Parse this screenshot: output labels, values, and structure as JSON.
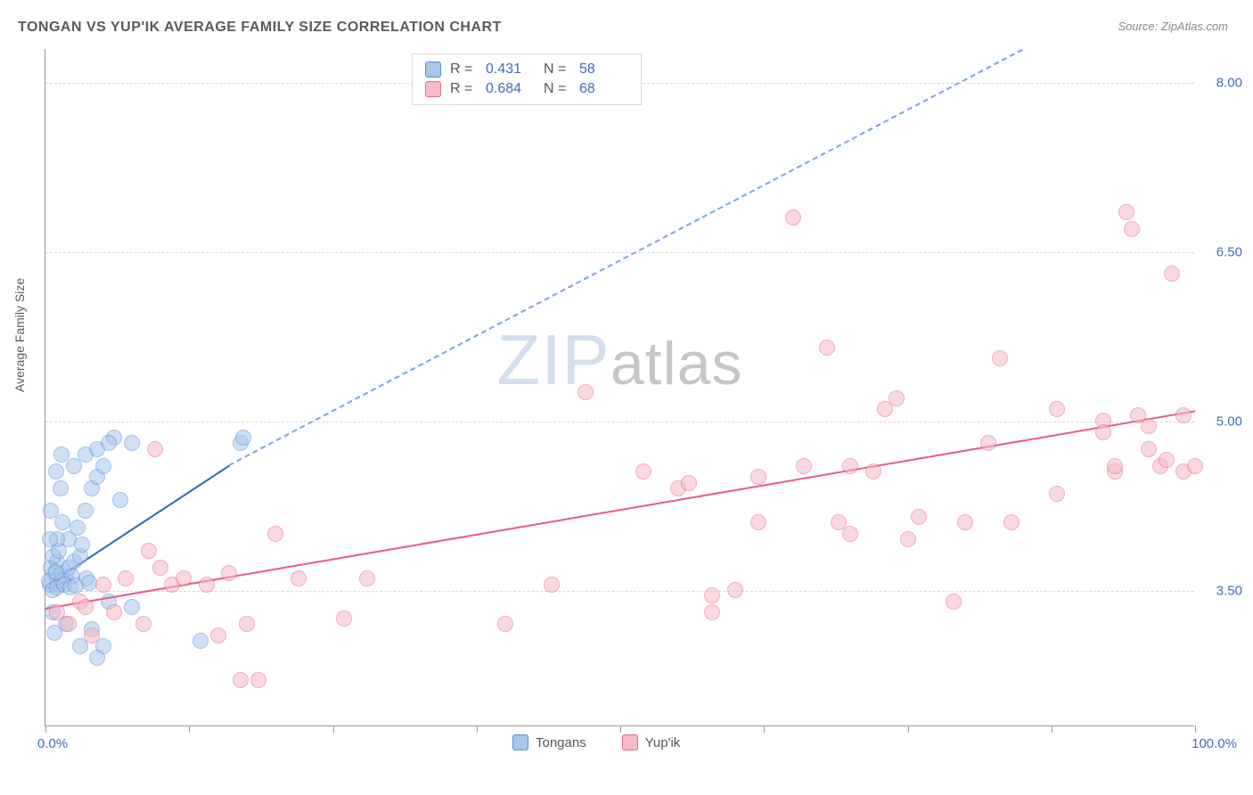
{
  "title": "TONGAN VS YUP'IK AVERAGE FAMILY SIZE CORRELATION CHART",
  "source": "Source: ZipAtlas.com",
  "ylabel": "Average Family Size",
  "watermark_zip": "ZIP",
  "watermark_rest": "atlas",
  "chart": {
    "type": "scatter",
    "xlim": [
      0,
      100
    ],
    "ylim": [
      2.3,
      8.3
    ],
    "x_axis_label_min": "0.0%",
    "x_axis_label_max": "100.0%",
    "y_ticks": [
      3.5,
      5.0,
      6.5,
      8.0
    ],
    "y_tick_labels": [
      "3.50",
      "5.00",
      "6.50",
      "8.00"
    ],
    "x_ticks": [
      0,
      12.5,
      25,
      37.5,
      50,
      62.5,
      75,
      87.5,
      100
    ],
    "grid_color": "#d8d8d8",
    "axis_color": "#999999",
    "background_color": "#ffffff",
    "tick_label_color": "#3d6db5",
    "marker_size": 18,
    "series": [
      {
        "name": "Tongans",
        "label": "Tongans",
        "fill_color": "#a9c6ec",
        "fill_opacity": 0.55,
        "stroke_color": "#5b8fd6",
        "stroke_width": 1.3,
        "R": "0.431",
        "N": "58",
        "trend": {
          "x1": 0,
          "y1": 3.55,
          "x2": 16,
          "y2": 4.62,
          "extrap_x2": 85,
          "extrap_y2": 8.3,
          "solid_color": "#2a64c1",
          "dash_color": "#7aa5e0",
          "width": 2
        },
        "points": [
          [
            0.4,
            3.55
          ],
          [
            0.6,
            3.5
          ],
          [
            0.8,
            3.65
          ],
          [
            1.0,
            3.6
          ],
          [
            0.5,
            3.7
          ],
          [
            1.2,
            3.55
          ],
          [
            1.4,
            3.65
          ],
          [
            1.6,
            3.6
          ],
          [
            1.0,
            3.75
          ],
          [
            0.7,
            3.8
          ],
          [
            1.8,
            3.62
          ],
          [
            0.3,
            3.58
          ],
          [
            1.0,
            3.52
          ],
          [
            1.5,
            3.58
          ],
          [
            2.0,
            3.7
          ],
          [
            2.3,
            3.62
          ],
          [
            1.2,
            3.85
          ],
          [
            0.9,
            3.66
          ],
          [
            2.5,
            3.75
          ],
          [
            3.0,
            3.8
          ],
          [
            2.0,
            3.95
          ],
          [
            1.5,
            4.1
          ],
          [
            2.8,
            4.05
          ],
          [
            1.6,
            3.55
          ],
          [
            1.0,
            3.95
          ],
          [
            3.2,
            3.9
          ],
          [
            3.5,
            4.2
          ],
          [
            4.0,
            4.4
          ],
          [
            4.5,
            4.5
          ],
          [
            3.5,
            4.7
          ],
          [
            5.0,
            4.6
          ],
          [
            4.5,
            4.75
          ],
          [
            6.0,
            4.85
          ],
          [
            5.5,
            4.8
          ],
          [
            7.5,
            4.8
          ],
          [
            4.0,
            3.15
          ],
          [
            5.0,
            3.0
          ],
          [
            4.5,
            2.9
          ],
          [
            5.5,
            3.4
          ],
          [
            13.5,
            3.05
          ],
          [
            17.0,
            4.8
          ],
          [
            17.2,
            4.85
          ],
          [
            3.6,
            3.6
          ],
          [
            3.8,
            3.56
          ],
          [
            2.2,
            3.52
          ],
          [
            2.6,
            3.54
          ],
          [
            0.5,
            4.2
          ],
          [
            1.3,
            4.4
          ],
          [
            2.5,
            4.6
          ],
          [
            6.5,
            4.3
          ],
          [
            7.5,
            3.35
          ],
          [
            0.6,
            3.3
          ],
          [
            1.8,
            3.2
          ],
          [
            3.0,
            3.0
          ],
          [
            0.8,
            3.12
          ],
          [
            1.4,
            4.7
          ],
          [
            0.9,
            4.55
          ],
          [
            0.4,
            3.95
          ]
        ]
      },
      {
        "name": "Yup'ik",
        "label": "Yup'ik",
        "fill_color": "#f5b9c7",
        "fill_opacity": 0.55,
        "stroke_color": "#e46b8d",
        "stroke_width": 1.3,
        "R": "0.684",
        "N": "68",
        "trend": {
          "x1": 0,
          "y1": 3.35,
          "x2": 100,
          "y2": 5.1,
          "solid_color": "#e85a87",
          "width": 2
        },
        "points": [
          [
            1,
            3.3
          ],
          [
            2,
            3.2
          ],
          [
            3,
            3.4
          ],
          [
            4,
            3.1
          ],
          [
            3.5,
            3.35
          ],
          [
            5,
            3.55
          ],
          [
            6,
            3.3
          ],
          [
            7,
            3.6
          ],
          [
            8.5,
            3.2
          ],
          [
            9,
            3.85
          ],
          [
            10,
            3.7
          ],
          [
            11,
            3.55
          ],
          [
            9.5,
            4.75
          ],
          [
            12,
            3.6
          ],
          [
            14,
            3.55
          ],
          [
            15,
            3.1
          ],
          [
            16,
            3.65
          ],
          [
            17.5,
            3.2
          ],
          [
            17,
            2.7
          ],
          [
            18.5,
            2.7
          ],
          [
            20,
            4.0
          ],
          [
            22,
            3.6
          ],
          [
            26,
            3.25
          ],
          [
            28,
            3.6
          ],
          [
            40,
            3.2
          ],
          [
            44,
            3.55
          ],
          [
            47,
            5.25
          ],
          [
            52,
            4.55
          ],
          [
            55,
            4.4
          ],
          [
            56,
            4.45
          ],
          [
            58,
            3.45
          ],
          [
            58,
            3.3
          ],
          [
            60,
            3.5
          ],
          [
            62,
            4.5
          ],
          [
            62,
            4.1
          ],
          [
            65,
            6.8
          ],
          [
            66,
            4.6
          ],
          [
            68,
            5.65
          ],
          [
            69,
            4.1
          ],
          [
            70,
            4.0
          ],
          [
            70,
            4.6
          ],
          [
            72,
            4.55
          ],
          [
            73,
            5.1
          ],
          [
            74,
            5.2
          ],
          [
            75,
            3.95
          ],
          [
            76,
            4.15
          ],
          [
            79,
            3.4
          ],
          [
            80,
            4.1
          ],
          [
            82,
            4.8
          ],
          [
            83,
            5.55
          ],
          [
            84,
            4.1
          ],
          [
            88,
            4.35
          ],
          [
            88,
            5.1
          ],
          [
            92,
            5.0
          ],
          [
            92,
            4.9
          ],
          [
            93,
            4.55
          ],
          [
            93,
            4.6
          ],
          [
            94,
            6.85
          ],
          [
            94.5,
            6.7
          ],
          [
            95,
            5.05
          ],
          [
            96,
            4.95
          ],
          [
            96,
            4.75
          ],
          [
            97,
            4.6
          ],
          [
            97.5,
            4.65
          ],
          [
            98,
            6.3
          ],
          [
            99,
            5.05
          ],
          [
            99,
            4.55
          ],
          [
            100,
            4.6
          ]
        ]
      }
    ]
  },
  "legend_top": {
    "r_label": "R  =",
    "n_label": "N  ="
  }
}
